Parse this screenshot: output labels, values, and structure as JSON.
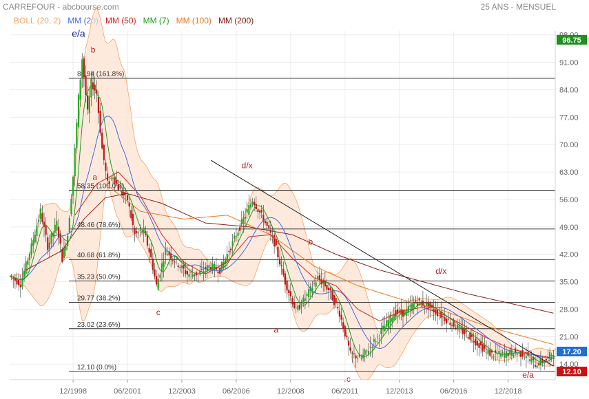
{
  "header": {
    "title": "CARREFOUR - abcbourse.com",
    "period": "25 ANS - MENSUEL"
  },
  "chart_data": {
    "type": "candlestick",
    "legend": [
      {
        "label": "BOLL (20, 2)",
        "color": "#f4a460"
      },
      {
        "label": "MM (20)",
        "color": "#4169e1"
      },
      {
        "label": "MM (50)",
        "color": "#dd2222"
      },
      {
        "label": "MM (7)",
        "color": "#1e9a1e"
      },
      {
        "label": "MM (100)",
        "color": "#ee7722"
      },
      {
        "label": "MM (200)",
        "color": "#8b1a1a"
      }
    ],
    "x_ticks": [
      "12/1998",
      "06/2001",
      "12/2003",
      "06/2006",
      "12/2008",
      "06/2011",
      "12/2013",
      "06/2016",
      "12/2018"
    ],
    "y_ticks": [
      14.0,
      21.0,
      28.0,
      35.0,
      42.0,
      49.0,
      56.0,
      63.0,
      70.0,
      77.0,
      84.0,
      91.0,
      98.0
    ],
    "ylim": [
      10,
      99
    ],
    "xlim": [
      "1996-01",
      "2021-02"
    ],
    "last_price": {
      "label": "17.20",
      "value": 17.2,
      "color": "#1d6fd6"
    },
    "high_marker": {
      "label": "96.75",
      "value": 96.75,
      "color": "#1f8f1f"
    },
    "low_marker": {
      "label": "12.10",
      "value": 12.1,
      "color": "#cc1111"
    },
    "fibonacci": [
      {
        "label": "86.94  (161.8%)",
        "value": 86.94
      },
      {
        "label": "58.35  (100.0%)",
        "value": 58.35
      },
      {
        "label": "48.46  (78.6%)",
        "value": 48.46
      },
      {
        "label": "40.68  (61.8%)",
        "value": 40.68
      },
      {
        "label": "35.23  (50.0%)",
        "value": 35.23
      },
      {
        "label": "29.77  (38.2%)",
        "value": 29.77
      },
      {
        "label": "23.02  (23.6%)",
        "value": 23.02
      },
      {
        "label": "12.10  (0.0%)",
        "value": 12.1
      }
    ],
    "wave_labels": [
      {
        "text": "e/a",
        "x": "1999-03",
        "y": 97.5,
        "color": "#1a1a8c"
      },
      {
        "text": "b",
        "x": "1999-11",
        "y": 93.5,
        "color": "#b22222"
      },
      {
        "text": "a",
        "x": "1999-12",
        "y": 61.0,
        "color": "#b22222"
      },
      {
        "text": "d/x",
        "x": "2006-12",
        "y": 64.0,
        "color": "#b22222"
      },
      {
        "text": "c",
        "x": "2002-11",
        "y": 26.5,
        "color": "#b22222"
      },
      {
        "text": "b",
        "x": "2009-11",
        "y": 44.5,
        "color": "#b22222"
      },
      {
        "text": "a",
        "x": "2008-04",
        "y": 22.0,
        "color": "#b22222"
      },
      {
        "text": "d/x",
        "x": "2015-11",
        "y": 37.0,
        "color": "#b22222"
      },
      {
        "text": "c",
        "x": "2011-08",
        "y": 9.5,
        "color": "#b22222"
      },
      {
        "text": "e/a",
        "x": "2019-11",
        "y": 10.5,
        "color": "#b22222"
      }
    ],
    "trendlines": [
      {
        "from": {
          "x": "2005-04",
          "y": 66.0
        },
        "to": {
          "x": "2021-01",
          "y": 13.5
        },
        "color": "#1a1a1a"
      }
    ],
    "price_anchors": [
      [
        "1996-01",
        36.5
      ],
      [
        "1996-07",
        34.5
      ],
      [
        "1997-01",
        44.0
      ],
      [
        "1997-06",
        53.0
      ],
      [
        "1997-10",
        44.0
      ],
      [
        "1998-03",
        50.0
      ],
      [
        "1998-06",
        41.0
      ],
      [
        "1998-09",
        47.0
      ],
      [
        "1998-12",
        62.0
      ],
      [
        "1999-03",
        82.0
      ],
      [
        "1999-05",
        92.0
      ],
      [
        "1999-08",
        78.0
      ],
      [
        "1999-10",
        86.0
      ],
      [
        "2000-01",
        83.0
      ],
      [
        "2000-04",
        69.0
      ],
      [
        "2000-07",
        60.0
      ],
      [
        "2000-10",
        62.0
      ],
      [
        "2001-02",
        58.0
      ],
      [
        "2001-06",
        56.0
      ],
      [
        "2001-10",
        47.0
      ],
      [
        "2002-03",
        48.0
      ],
      [
        "2002-07",
        41.0
      ],
      [
        "2002-10",
        34.0
      ],
      [
        "2003-03",
        43.0
      ],
      [
        "2003-09",
        40.0
      ],
      [
        "2004-03",
        37.0
      ],
      [
        "2004-09",
        37.0
      ],
      [
        "2005-03",
        39.0
      ],
      [
        "2005-09",
        38.0
      ],
      [
        "2006-03",
        44.0
      ],
      [
        "2006-09",
        50.0
      ],
      [
        "2007-03",
        56.0
      ],
      [
        "2007-09",
        51.0
      ],
      [
        "2008-03",
        45.0
      ],
      [
        "2008-09",
        35.0
      ],
      [
        "2009-03",
        27.5
      ],
      [
        "2009-09",
        31.5
      ],
      [
        "2010-03",
        36.0
      ],
      [
        "2010-09",
        33.0
      ],
      [
        "2011-03",
        27.0
      ],
      [
        "2011-09",
        16.5
      ],
      [
        "2012-03",
        15.5
      ],
      [
        "2012-09",
        19.0
      ],
      [
        "2013-03",
        23.0
      ],
      [
        "2013-09",
        27.0
      ],
      [
        "2014-03",
        27.0
      ],
      [
        "2014-09",
        30.0
      ],
      [
        "2015-03",
        29.0
      ],
      [
        "2015-09",
        27.0
      ],
      [
        "2016-03",
        25.0
      ],
      [
        "2016-09",
        23.0
      ],
      [
        "2017-03",
        21.0
      ],
      [
        "2017-09",
        18.5
      ],
      [
        "2018-03",
        16.5
      ],
      [
        "2018-09",
        16.5
      ],
      [
        "2019-03",
        17.0
      ],
      [
        "2019-09",
        16.5
      ],
      [
        "2020-03",
        14.0
      ],
      [
        "2020-06",
        14.5
      ],
      [
        "2020-09",
        15.0
      ],
      [
        "2021-01",
        17.2
      ]
    ],
    "ma200_anchors": [
      [
        "1996-10",
        38.0
      ],
      [
        "1998-06",
        43.0
      ],
      [
        "1999-06",
        51.0
      ],
      [
        "2000-06",
        56.5
      ],
      [
        "2001-06",
        57.5
      ],
      [
        "2003-01",
        55.0
      ],
      [
        "2005-01",
        50.0
      ],
      [
        "2007-01",
        49.0
      ],
      [
        "2009-01",
        47.0
      ],
      [
        "2011-01",
        42.0
      ],
      [
        "2013-01",
        38.0
      ],
      [
        "2015-01",
        35.0
      ],
      [
        "2017-01",
        32.0
      ],
      [
        "2019-01",
        29.5
      ],
      [
        "2021-01",
        27.0
      ]
    ],
    "ma100_anchors": [
      [
        "2000-06",
        60.0
      ],
      [
        "2002-01",
        53.0
      ],
      [
        "2004-01",
        51.0
      ],
      [
        "2006-01",
        52.0
      ],
      [
        "2008-01",
        47.0
      ],
      [
        "2010-01",
        39.0
      ],
      [
        "2012-01",
        34.0
      ],
      [
        "2014-01",
        30.5
      ],
      [
        "2016-01",
        27.5
      ],
      [
        "2018-01",
        23.5
      ],
      [
        "2020-01",
        20.5
      ],
      [
        "2021-01",
        19.0
      ]
    ],
    "ma50_anchors": [
      [
        "1999-01",
        52.0
      ],
      [
        "2000-01",
        60.0
      ],
      [
        "2001-01",
        63.0
      ],
      [
        "2002-01",
        57.0
      ],
      [
        "2003-01",
        47.0
      ],
      [
        "2004-01",
        40.0
      ],
      [
        "2005-01",
        37.0
      ],
      [
        "2006-01",
        40.0
      ],
      [
        "2007-01",
        46.5
      ],
      [
        "2008-01",
        47.0
      ],
      [
        "2009-01",
        41.0
      ],
      [
        "2010-01",
        36.0
      ],
      [
        "2011-01",
        34.0
      ],
      [
        "2012-01",
        28.0
      ],
      [
        "2013-01",
        25.0
      ],
      [
        "2014-01",
        27.5
      ],
      [
        "2015-01",
        28.5
      ],
      [
        "2016-01",
        26.5
      ],
      [
        "2017-01",
        23.5
      ],
      [
        "2018-01",
        20.5
      ],
      [
        "2019-01",
        18.0
      ],
      [
        "2020-01",
        16.5
      ],
      [
        "2021-01",
        15.5
      ]
    ]
  }
}
